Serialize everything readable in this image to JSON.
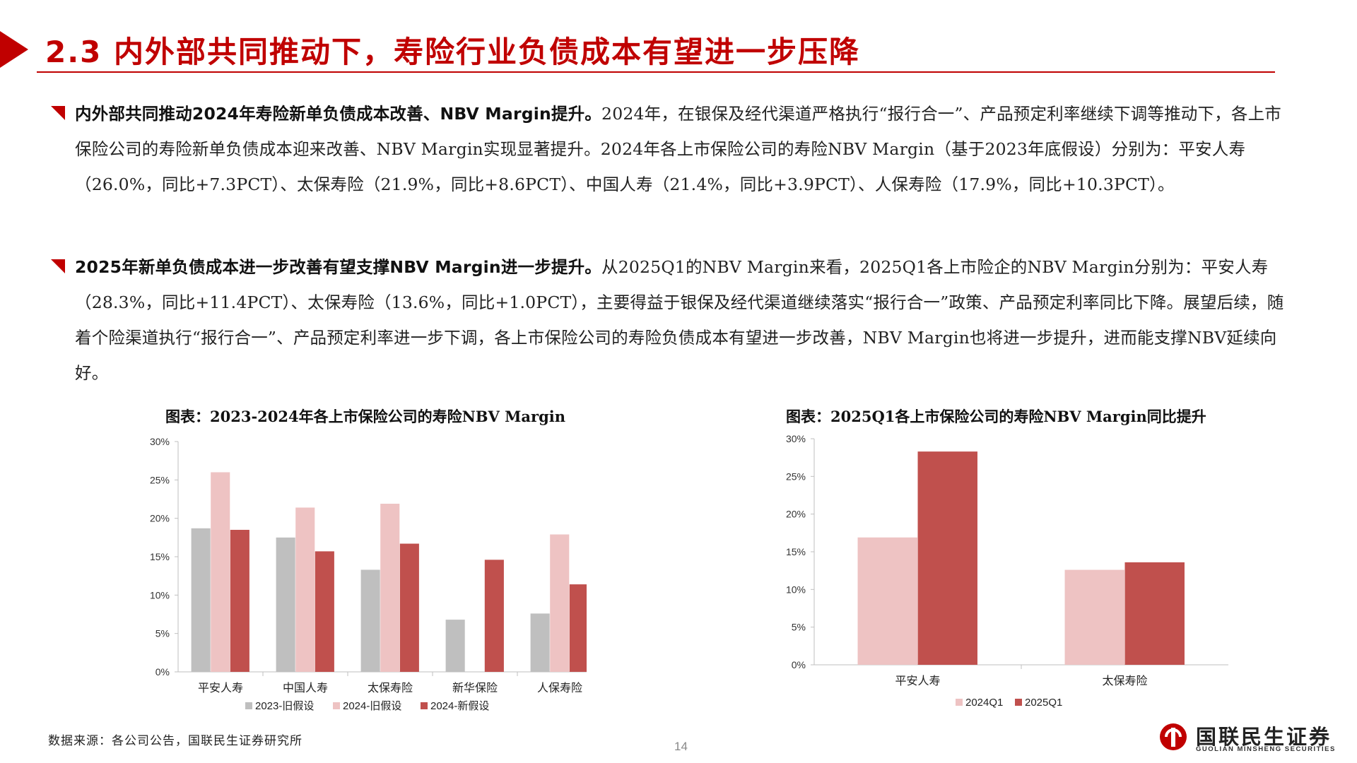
{
  "header": {
    "title": "2.3 内外部共同推动下，寿险行业负债成本有望进一步压降"
  },
  "paragraphs": [
    {
      "lead": "内外部共同推动2024年寿险新单负债成本改善、NBV Margin提升。",
      "text": "2024年，在银保及经代渠道严格执行“报行合一”、产品预定利率继续下调等推动下，各上市保险公司的寿险新单负债成本迎来改善、NBV Margin实现显著提升。2024年各上市保险公司的寿险NBV Margin（基于2023年底假设）分别为：平安人寿（26.0%，同比+7.3PCT）、太保寿险（21.9%，同比+8.6PCT）、中国人寿（21.4%，同比+3.9PCT）、人保寿险（17.9%，同比+10.3PCT）。"
    },
    {
      "lead": "2025年新单负债成本进一步改善有望支撑NBV Margin进一步提升。",
      "text": "从2025Q1的NBV Margin来看，2025Q1各上市险企的NBV Margin分别为：平安人寿（28.3%，同比+11.4PCT）、太保寿险（13.6%，同比+1.0PCT），主要得益于银保及经代渠道继续落实“报行合一”政策、产品预定利率同比下降。展望后续，随着个险渠道执行“报行合一”、产品预定利率进一步下调，各上市保险公司的寿险负债成本有望进一步改善，NBV Margin也将进一步提升，进而能支撑NBV延续向好。"
    }
  ],
  "chart_titles": {
    "left": "图表：2023-2024年各上市保险公司的寿险NBV Margin",
    "right": "图表：2025Q1各上市保险公司的寿险NBV Margin同比提升"
  },
  "chart_data": [
    {
      "type": "bar",
      "title": "图表：2023-2024年各上市保险公司的寿险NBV Margin",
      "categories": [
        "平安人寿",
        "中国人寿",
        "太保寿险",
        "新华保险",
        "人保寿险"
      ],
      "series": [
        {
          "name": "2023-旧假设",
          "color": "#bfbfbf",
          "values": [
            18.7,
            17.5,
            13.3,
            6.8,
            7.6
          ]
        },
        {
          "name": "2024-旧假设",
          "color": "#eec3c3",
          "values": [
            26.0,
            21.4,
            21.9,
            null,
            17.9
          ]
        },
        {
          "name": "2024-新假设",
          "color": "#c0504d",
          "values": [
            18.5,
            15.7,
            16.7,
            14.6,
            11.4
          ]
        }
      ],
      "yticks": [
        "0%",
        "5%",
        "10%",
        "15%",
        "20%",
        "25%",
        "30%"
      ],
      "ylim": [
        0,
        30
      ],
      "legend": "bottom"
    },
    {
      "type": "bar",
      "title": "图表：2025Q1各上市保险公司的寿险NBV Margin同比提升",
      "categories": [
        "平安人寿",
        "太保寿险"
      ],
      "series": [
        {
          "name": "2024Q1",
          "color": "#eec3c3",
          "values": [
            16.9,
            12.6
          ]
        },
        {
          "name": "2025Q1",
          "color": "#c0504d",
          "values": [
            28.3,
            13.6
          ]
        }
      ],
      "yticks": [
        "0%",
        "5%",
        "10%",
        "15%",
        "20%",
        "25%",
        "30%"
      ],
      "ylim": [
        0,
        30
      ],
      "legend": "bottom"
    }
  ],
  "footer": {
    "source": "数据来源：各公司公告，国联民生证券研究所",
    "page_number": "14",
    "logo_text": "国联民生证券",
    "logo_sub": "GUOLIAN MINSHENG SECURITIES"
  },
  "colors": {
    "accent": "#c00000",
    "series_grey": "#bfbfbf",
    "series_pink": "#eec3c3",
    "series_red": "#c0504d"
  }
}
